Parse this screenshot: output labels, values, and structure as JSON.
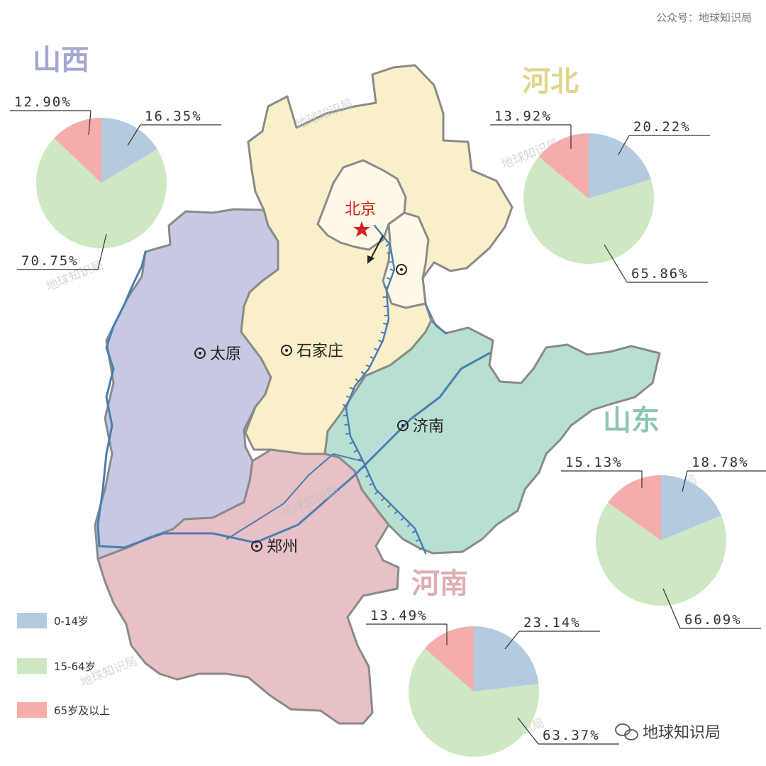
{
  "header": "公众号：地球知识局",
  "footer": "地球知识局",
  "watermark": "地球知识局",
  "colors": {
    "shanxi": "#c6c9e1",
    "hebei": "#f9f0c9",
    "beijing": "#fdf9e6",
    "shandong": "#b8e0d2",
    "henan": "#e7c1c5",
    "river": "#4a7db3",
    "border": "#8a8a8a",
    "age_0_14": "#b4cbdf",
    "age_15_64": "#cde8c3",
    "age_65": "#f5adab"
  },
  "legend": [
    {
      "label": "0-14岁",
      "color": "#b4cbdf"
    },
    {
      "label": "15-64岁",
      "color": "#cde8c3"
    },
    {
      "label": "65岁及以上",
      "color": "#f5adab"
    }
  ],
  "provinces": {
    "shanxi": {
      "name": "山西",
      "color": "#a3a8cf"
    },
    "hebei": {
      "name": "河北",
      "color": "#e2d58d"
    },
    "shandong": {
      "name": "山东",
      "color": "#8dc6b6"
    },
    "henan": {
      "name": "河南",
      "color": "#dfaeb3"
    }
  },
  "capital": "北京",
  "cities": [
    {
      "name": "太原"
    },
    {
      "name": "石家庄"
    },
    {
      "name": "济南"
    },
    {
      "name": "郑州"
    },
    {
      "name": ""
    }
  ],
  "chart_data": [
    {
      "type": "pie",
      "province": "山西",
      "categories": [
        "0-14岁",
        "15-64岁",
        "65岁及以上"
      ],
      "values": [
        16.35,
        70.75,
        12.9
      ],
      "labels": [
        "16.35%",
        "70.75%",
        "12.90%"
      ]
    },
    {
      "type": "pie",
      "province": "河北",
      "categories": [
        "0-14岁",
        "15-64岁",
        "65岁及以上"
      ],
      "values": [
        20.22,
        65.86,
        13.92
      ],
      "labels": [
        "20.22%",
        "65.86%",
        "13.92%"
      ]
    },
    {
      "type": "pie",
      "province": "山东",
      "categories": [
        "0-14岁",
        "15-64岁",
        "65岁及以上"
      ],
      "values": [
        18.78,
        66.09,
        15.13
      ],
      "labels": [
        "18.78%",
        "66.09%",
        "15.13%"
      ]
    },
    {
      "type": "pie",
      "province": "河南",
      "categories": [
        "0-14岁",
        "15-64岁",
        "65岁及以上"
      ],
      "values": [
        23.14,
        63.37,
        13.49
      ],
      "labels": [
        "23.14%",
        "63.37%",
        "13.49%"
      ]
    }
  ]
}
